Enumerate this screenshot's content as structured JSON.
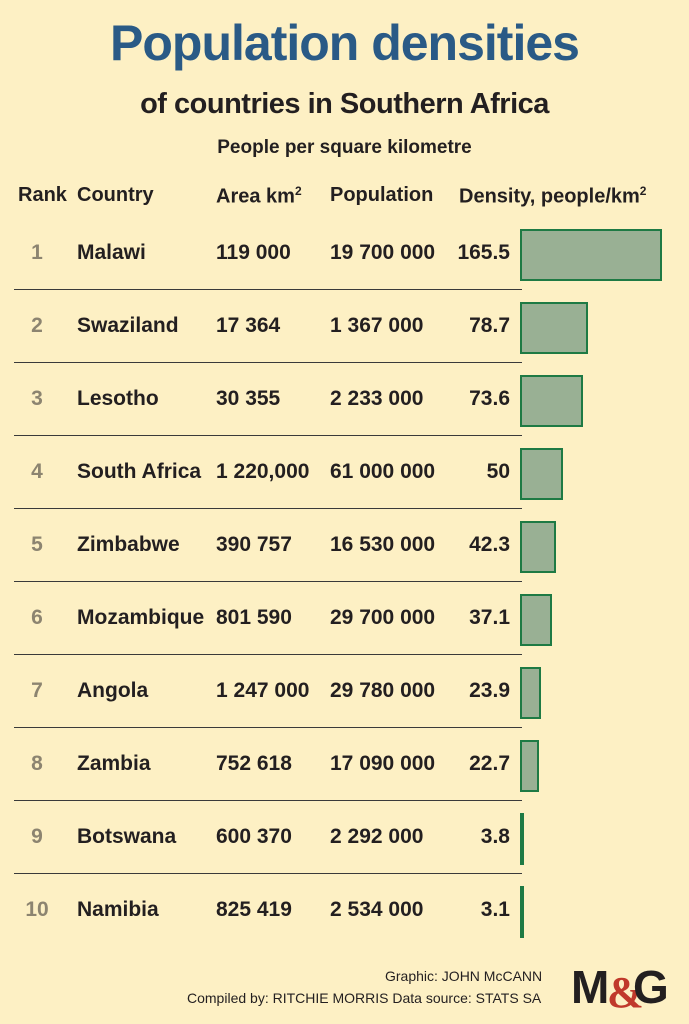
{
  "title": "Population densities",
  "subtitle": "of countries in Southern Africa",
  "unit_note": "People per square kilometre",
  "headers": {
    "rank": "Rank",
    "country": "Country",
    "area": "Area km",
    "area_sup": "2",
    "population": "Population",
    "density": "Density, people/km",
    "density_sup": "2"
  },
  "colors": {
    "title": "#2a5a86",
    "bar_fill": "#99b094",
    "bar_border": "#1e7a44",
    "background": "#fdf0c4"
  },
  "chart_data": {
    "type": "table",
    "title": "Population densities",
    "subtitle": "of countries in Southern Africa",
    "columns": [
      "Rank",
      "Country",
      "Area km2",
      "Population",
      "Density, people/km2"
    ],
    "bar_column": "Density, people/km2",
    "rows": [
      {
        "rank": "1",
        "country": "Malawi",
        "area": "119 000",
        "population": "19 700 000",
        "density": 165.5,
        "density_label": "165.5"
      },
      {
        "rank": "2",
        "country": "Swaziland",
        "area": "17 364",
        "population": "1 367 000",
        "density": 78.7,
        "density_label": "78.7"
      },
      {
        "rank": "3",
        "country": "Lesotho",
        "area": "30 355",
        "population": "2 233 000",
        "density": 73.6,
        "density_label": "73.6"
      },
      {
        "rank": "4",
        "country": "South Africa",
        "area": "1 220,000",
        "population": "61 000 000",
        "density": 50,
        "density_label": "50"
      },
      {
        "rank": "5",
        "country": "Zimbabwe",
        "area": "390 757",
        "population": "16 530 000",
        "density": 42.3,
        "density_label": "42.3"
      },
      {
        "rank": "6",
        "country": "Mozambique",
        "area": "801 590",
        "population": "29 700 000",
        "density": 37.1,
        "density_label": "37.1"
      },
      {
        "rank": "7",
        "country": "Angola",
        "area": "1 247 000",
        "population": "29 780 000",
        "density": 23.9,
        "density_label": "23.9"
      },
      {
        "rank": "8",
        "country": "Zambia",
        "area": "752 618",
        "population": "17 090 000",
        "density": 22.7,
        "density_label": "22.7"
      },
      {
        "rank": "9",
        "country": "Botswana",
        "area": "600 370",
        "population": "2 292 000",
        "density": 3.8,
        "density_label": "3.8"
      },
      {
        "rank": "10",
        "country": "Namibia",
        "area": "825 419",
        "population": "2 534 000",
        "density": 3.1,
        "density_label": "3.1"
      }
    ]
  },
  "footer": {
    "graphic": "Graphic: JOHN McCANN",
    "compiled": "Compiled by: RITCHIE MORRIS  Data source: STATS SA"
  },
  "logo": {
    "text": "M&G",
    "icon": "mg-logo"
  }
}
